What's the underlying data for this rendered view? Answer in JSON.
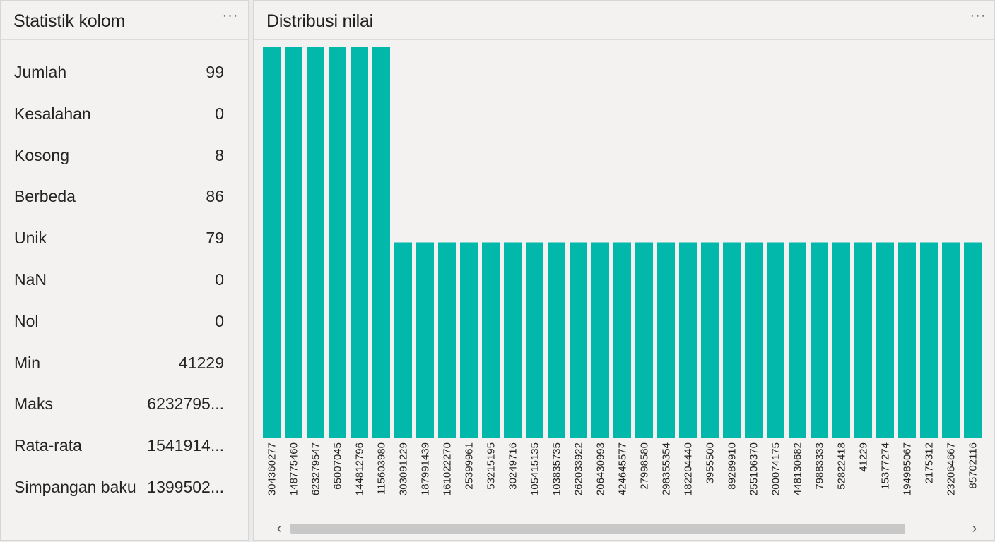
{
  "stats_panel": {
    "title": "Statistik kolom",
    "more_label": "···",
    "rows": [
      {
        "label": "Jumlah",
        "value": "99"
      },
      {
        "label": "Kesalahan",
        "value": "0"
      },
      {
        "label": "Kosong",
        "value": "8"
      },
      {
        "label": "Berbeda",
        "value": "86"
      },
      {
        "label": "Unik",
        "value": "79"
      },
      {
        "label": "NaN",
        "value": "0"
      },
      {
        "label": "Nol",
        "value": "0"
      },
      {
        "label": "Min",
        "value": "41229"
      },
      {
        "label": "Maks",
        "value": "6232795..."
      },
      {
        "label": "Rata-rata",
        "value": "1541914..."
      },
      {
        "label": "Simpangan baku",
        "value": "1399502..."
      }
    ]
  },
  "dist_panel": {
    "title": "Distribusi nilai",
    "more_label": "···",
    "scroll_left_icon": "‹",
    "scroll_right_icon": "›",
    "scroll_position_fraction": 0.0
  },
  "colors": {
    "bar": "#01b8aa"
  },
  "chart_data": {
    "type": "bar",
    "title": "Distribusi nilai",
    "xlabel": "",
    "ylabel": "",
    "ylim": [
      0,
      2
    ],
    "categories": [
      "304360277",
      "148775460",
      "623279547",
      "65007045",
      "144812796",
      "115603980",
      "303091229",
      "187991439",
      "161022270",
      "25399961",
      "53215195",
      "30249716",
      "105415135",
      "103835735",
      "262033922",
      "206430993",
      "424645577",
      "27998580",
      "298355354",
      "182204440",
      "3955500",
      "89289910",
      "255106370",
      "200074175",
      "448130682",
      "79883333",
      "52822418",
      "41229",
      "15377274",
      "194985067",
      "2175312",
      "232064667",
      "85702116"
    ],
    "values": [
      2,
      2,
      2,
      2,
      2,
      2,
      1,
      1,
      1,
      1,
      1,
      1,
      1,
      1,
      1,
      1,
      1,
      1,
      1,
      1,
      1,
      1,
      1,
      1,
      1,
      1,
      1,
      1,
      1,
      1,
      1,
      1,
      1
    ]
  }
}
